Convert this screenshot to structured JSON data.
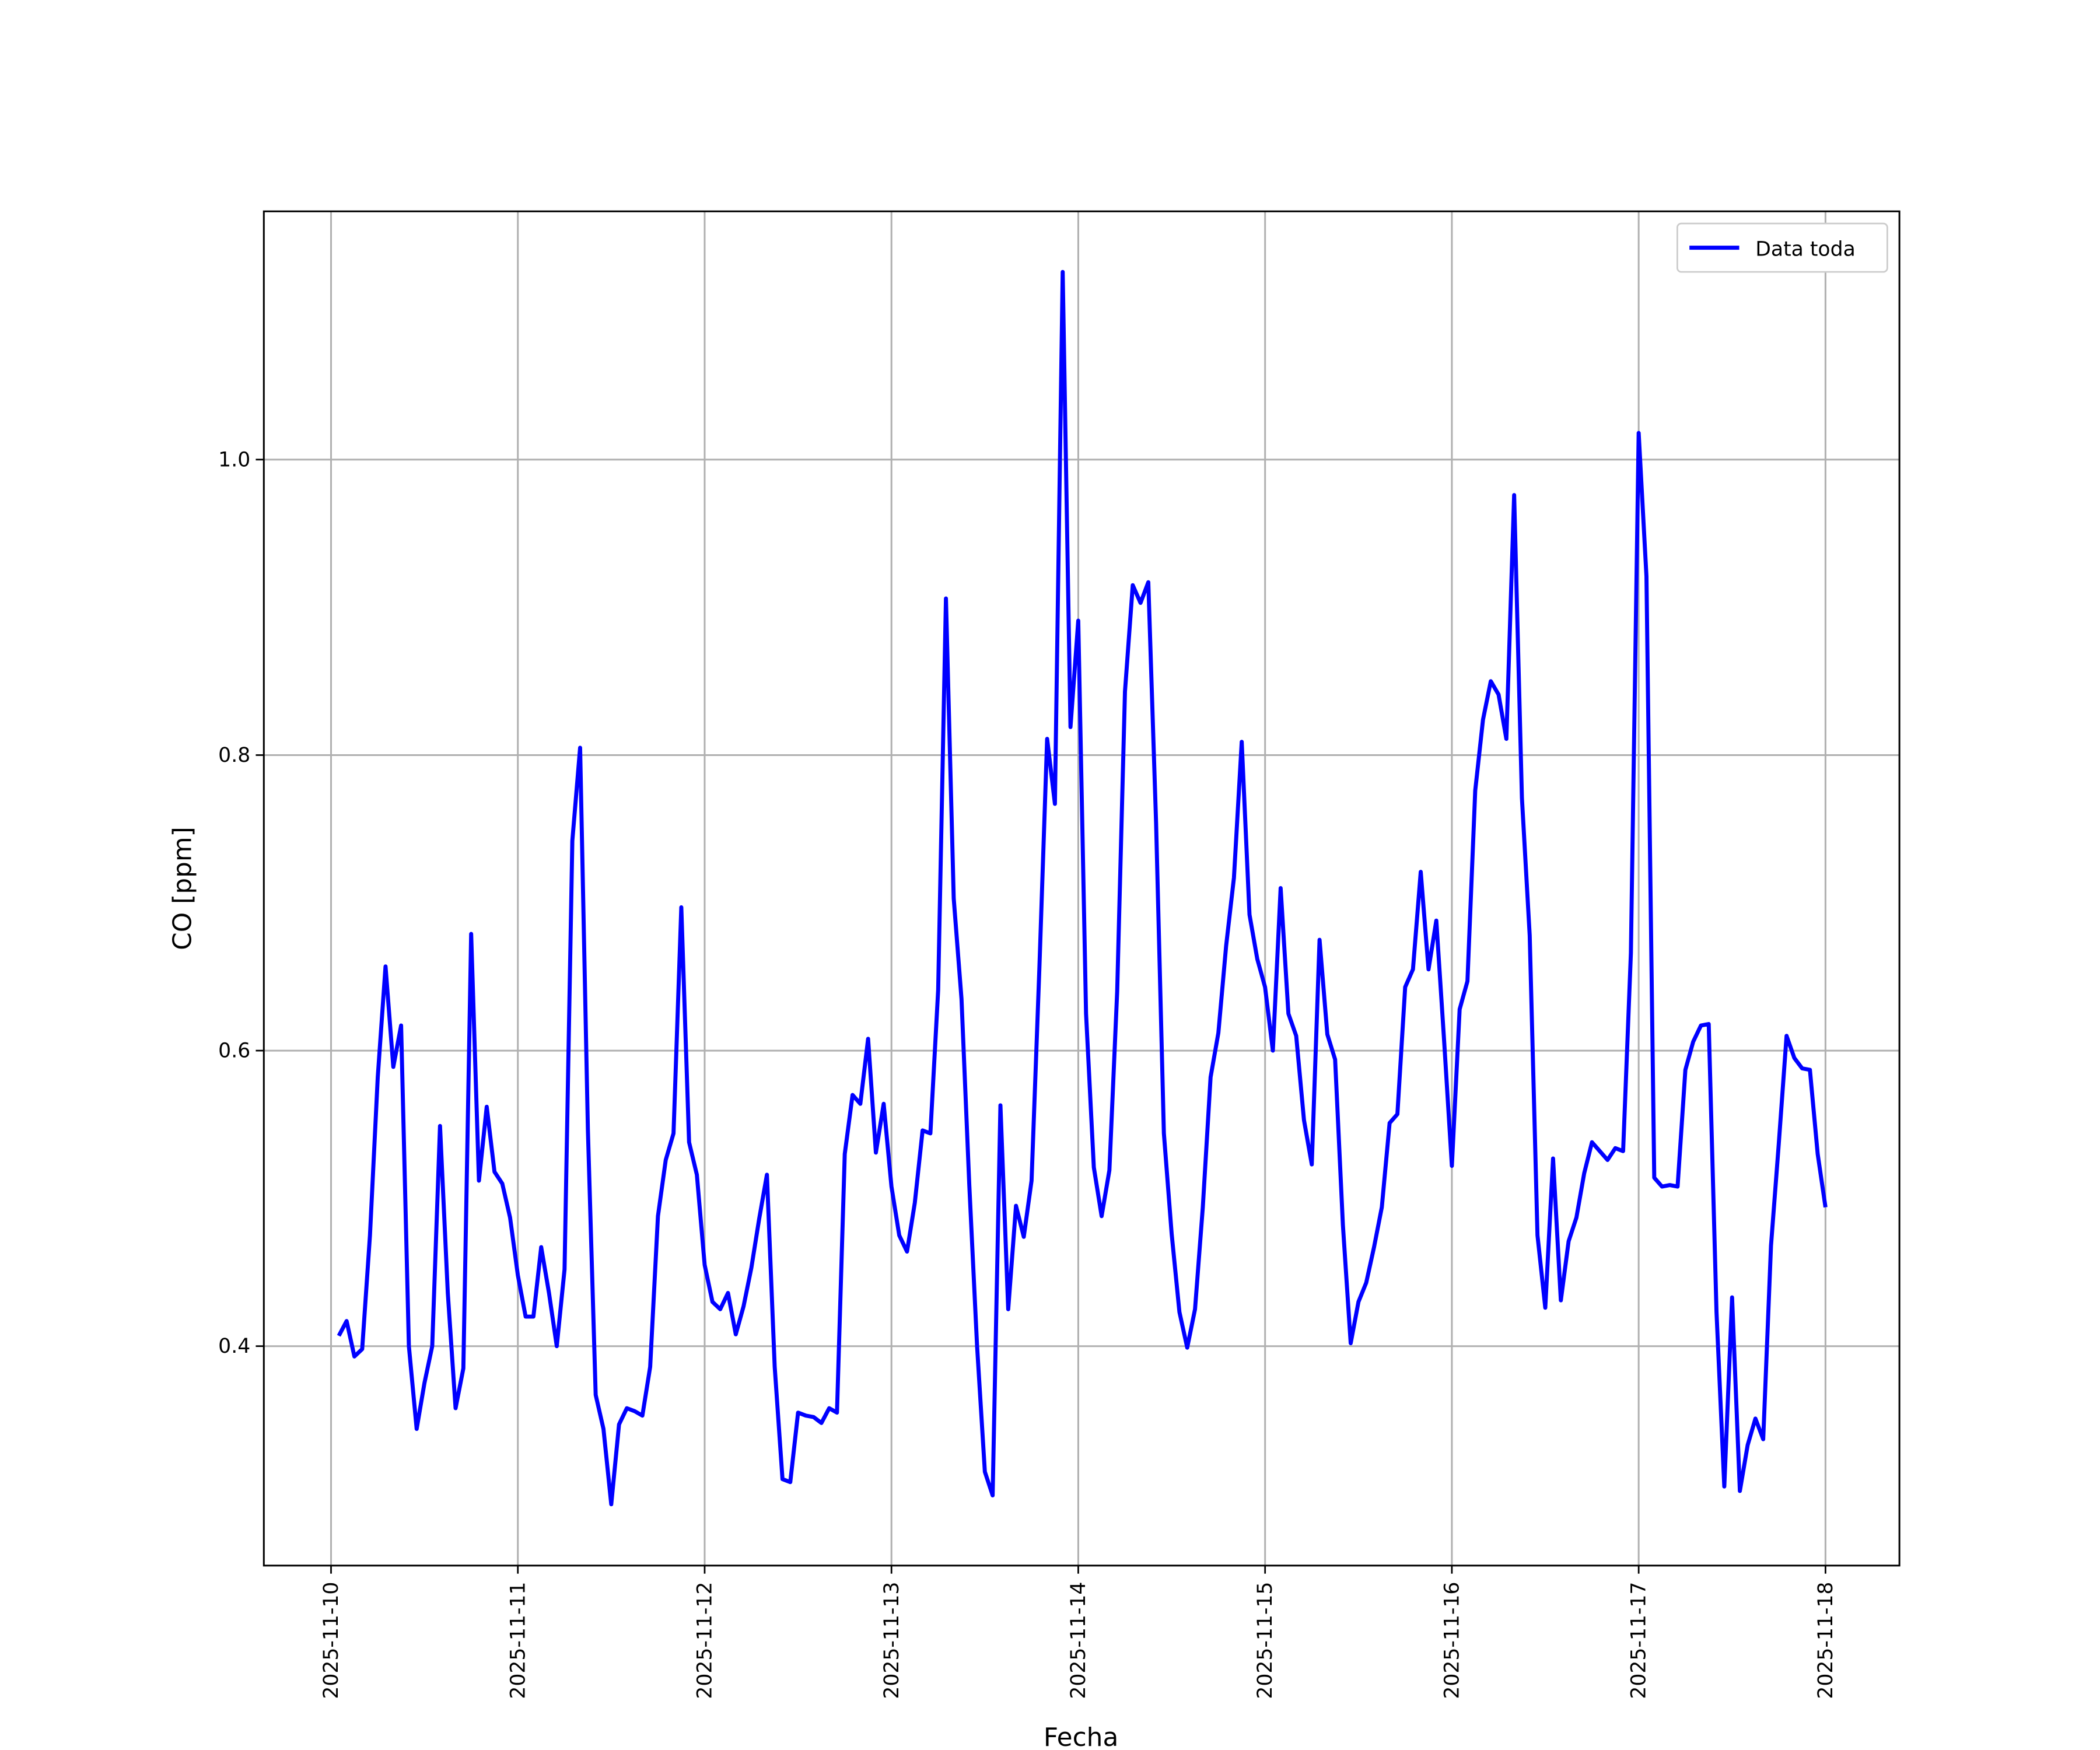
{
  "chart_data": {
    "type": "line",
    "xlabel": "Fecha",
    "ylabel": "CO [ppm]",
    "x": [
      "2025-11-10 01:00",
      "2025-11-10 02:00",
      "2025-11-10 03:00",
      "2025-11-10 04:00",
      "2025-11-10 05:00",
      "2025-11-10 06:00",
      "2025-11-10 07:00",
      "2025-11-10 08:00",
      "2025-11-10 09:00",
      "2025-11-10 10:00",
      "2025-11-10 11:00",
      "2025-11-10 12:00",
      "2025-11-10 13:00",
      "2025-11-10 14:00",
      "2025-11-10 15:00",
      "2025-11-10 16:00",
      "2025-11-10 17:00",
      "2025-11-10 18:00",
      "2025-11-10 19:00",
      "2025-11-10 20:00",
      "2025-11-10 21:00",
      "2025-11-10 22:00",
      "2025-11-10 23:00",
      "2025-11-11 00:00",
      "2025-11-11 01:00",
      "2025-11-11 02:00",
      "2025-11-11 03:00",
      "2025-11-11 04:00",
      "2025-11-11 05:00",
      "2025-11-11 06:00",
      "2025-11-11 07:00",
      "2025-11-11 08:00",
      "2025-11-11 09:00",
      "2025-11-11 10:00",
      "2025-11-11 11:00",
      "2025-11-11 12:00",
      "2025-11-11 13:00",
      "2025-11-11 14:00",
      "2025-11-11 15:00",
      "2025-11-11 16:00",
      "2025-11-11 17:00",
      "2025-11-11 18:00",
      "2025-11-11 19:00",
      "2025-11-11 20:00",
      "2025-11-11 21:00",
      "2025-11-11 22:00",
      "2025-11-11 23:00",
      "2025-11-12 00:00",
      "2025-11-12 01:00",
      "2025-11-12 02:00",
      "2025-11-12 03:00",
      "2025-11-12 04:00",
      "2025-11-12 05:00",
      "2025-11-12 06:00",
      "2025-11-12 07:00",
      "2025-11-12 08:00",
      "2025-11-12 09:00",
      "2025-11-12 10:00",
      "2025-11-12 11:00",
      "2025-11-12 12:00",
      "2025-11-12 13:00",
      "2025-11-12 14:00",
      "2025-11-12 15:00",
      "2025-11-12 16:00",
      "2025-11-12 17:00",
      "2025-11-12 18:00",
      "2025-11-12 19:00",
      "2025-11-12 20:00",
      "2025-11-12 21:00",
      "2025-11-12 22:00",
      "2025-11-12 23:00",
      "2025-11-13 00:00",
      "2025-11-13 01:00",
      "2025-11-13 02:00",
      "2025-11-13 03:00",
      "2025-11-13 04:00",
      "2025-11-13 05:00",
      "2025-11-13 06:00",
      "2025-11-13 07:00",
      "2025-11-13 08:00",
      "2025-11-13 09:00",
      "2025-11-13 10:00",
      "2025-11-13 11:00",
      "2025-11-13 12:00",
      "2025-11-13 13:00",
      "2025-11-13 14:00",
      "2025-11-13 15:00",
      "2025-11-13 16:00",
      "2025-11-13 17:00",
      "2025-11-13 18:00",
      "2025-11-13 19:00",
      "2025-11-13 20:00",
      "2025-11-13 21:00",
      "2025-11-13 22:00",
      "2025-11-13 23:00",
      "2025-11-14 00:00",
      "2025-11-14 01:00",
      "2025-11-14 02:00",
      "2025-11-14 03:00",
      "2025-11-14 04:00",
      "2025-11-14 05:00",
      "2025-11-14 06:00",
      "2025-11-14 07:00",
      "2025-11-14 08:00",
      "2025-11-14 09:00",
      "2025-11-14 10:00",
      "2025-11-14 11:00",
      "2025-11-14 12:00",
      "2025-11-14 13:00",
      "2025-11-14 14:00",
      "2025-11-14 15:00",
      "2025-11-14 16:00",
      "2025-11-14 17:00",
      "2025-11-14 18:00",
      "2025-11-14 19:00",
      "2025-11-14 20:00",
      "2025-11-14 21:00",
      "2025-11-14 22:00",
      "2025-11-14 23:00",
      "2025-11-15 00:00",
      "2025-11-15 01:00",
      "2025-11-15 02:00",
      "2025-11-15 03:00",
      "2025-11-15 04:00",
      "2025-11-15 05:00",
      "2025-11-15 06:00",
      "2025-11-15 07:00",
      "2025-11-15 08:00",
      "2025-11-15 09:00",
      "2025-11-15 10:00",
      "2025-11-15 11:00",
      "2025-11-15 12:00",
      "2025-11-15 13:00",
      "2025-11-15 14:00",
      "2025-11-15 15:00",
      "2025-11-15 16:00",
      "2025-11-15 17:00",
      "2025-11-15 18:00",
      "2025-11-15 19:00",
      "2025-11-15 20:00",
      "2025-11-15 21:00",
      "2025-11-15 22:00",
      "2025-11-15 23:00",
      "2025-11-16 00:00",
      "2025-11-16 01:00",
      "2025-11-16 02:00",
      "2025-11-16 03:00",
      "2025-11-16 04:00",
      "2025-11-16 05:00",
      "2025-11-16 06:00",
      "2025-11-16 07:00",
      "2025-11-16 08:00",
      "2025-11-16 09:00",
      "2025-11-16 10:00",
      "2025-11-16 11:00",
      "2025-11-16 12:00",
      "2025-11-16 13:00",
      "2025-11-16 14:00",
      "2025-11-16 15:00",
      "2025-11-16 16:00",
      "2025-11-16 17:00",
      "2025-11-16 18:00",
      "2025-11-16 19:00",
      "2025-11-16 20:00",
      "2025-11-16 21:00",
      "2025-11-16 22:00",
      "2025-11-16 23:00",
      "2025-11-17 00:00",
      "2025-11-17 01:00",
      "2025-11-17 02:00",
      "2025-11-17 03:00",
      "2025-11-17 04:00",
      "2025-11-17 05:00",
      "2025-11-17 06:00",
      "2025-11-17 07:00",
      "2025-11-17 08:00",
      "2025-11-17 09:00",
      "2025-11-17 10:00",
      "2025-11-17 11:00",
      "2025-11-17 12:00",
      "2025-11-17 13:00",
      "2025-11-17 14:00",
      "2025-11-17 15:00",
      "2025-11-17 16:00",
      "2025-11-17 17:00",
      "2025-11-17 18:00",
      "2025-11-17 19:00",
      "2025-11-17 20:00",
      "2025-11-17 21:00",
      "2025-11-17 22:00",
      "2025-11-17 23:00",
      "2025-11-18 00:00"
    ],
    "series": [
      {
        "name": "Data toda",
        "color": "#0000ff",
        "values": [
          0.407,
          0.417,
          0.393,
          0.398,
          0.475,
          0.582,
          0.657,
          0.589,
          0.617,
          0.4,
          0.344,
          0.375,
          0.4,
          0.549,
          0.436,
          0.358,
          0.385,
          0.679,
          0.512,
          0.562,
          0.518,
          0.51,
          0.487,
          0.448,
          0.42,
          0.42,
          0.467,
          0.436,
          0.4,
          0.452,
          0.742,
          0.805,
          0.546,
          0.367,
          0.344,
          0.293,
          0.347,
          0.358,
          0.356,
          0.353,
          0.386,
          0.488,
          0.526,
          0.544,
          0.697,
          0.538,
          0.516,
          0.455,
          0.43,
          0.425,
          0.436,
          0.408,
          0.427,
          0.453,
          0.486,
          0.516,
          0.386,
          0.31,
          0.308,
          0.355,
          0.353,
          0.352,
          0.348,
          0.358,
          0.355,
          0.53,
          0.57,
          0.564,
          0.608,
          0.531,
          0.564,
          0.508,
          0.475,
          0.464,
          0.497,
          0.546,
          0.544,
          0.641,
          0.906,
          0.703,
          0.635,
          0.509,
          0.4,
          0.315,
          0.299,
          0.563,
          0.425,
          0.495,
          0.474,
          0.512,
          0.655,
          0.811,
          0.767,
          1.127,
          0.819,
          0.891,
          0.625,
          0.521,
          0.488,
          0.519,
          0.64,
          0.843,
          0.915,
          0.903,
          0.917,
          0.754,
          0.544,
          0.476,
          0.423,
          0.399,
          0.425,
          0.494,
          0.582,
          0.612,
          0.671,
          0.717,
          0.809,
          0.692,
          0.662,
          0.643,
          0.6,
          0.71,
          0.625,
          0.61,
          0.553,
          0.523,
          0.675,
          0.611,
          0.594,
          0.482,
          0.402,
          0.43,
          0.443,
          0.467,
          0.494,
          0.551,
          0.557,
          0.643,
          0.655,
          0.721,
          0.655,
          0.688,
          0.607,
          0.522,
          0.628,
          0.647,
          0.776,
          0.824,
          0.85,
          0.841,
          0.811,
          0.976,
          0.771,
          0.678,
          0.475,
          0.426,
          0.527,
          0.431,
          0.471,
          0.487,
          0.517,
          0.538,
          0.532,
          0.526,
          0.534,
          0.532,
          0.666,
          1.018,
          0.921,
          0.514,
          0.508,
          0.509,
          0.508,
          0.587,
          0.606,
          0.617,
          0.618,
          0.423,
          0.305,
          0.433,
          0.302,
          0.333,
          0.351,
          0.337,
          0.468,
          0.537,
          0.61,
          0.595,
          0.588,
          0.587,
          0.53,
          0.494
        ]
      }
    ],
    "xlim": [
      "2025-11-09 15:22",
      "2025-11-18 09:30"
    ],
    "xticks": [
      "2025-11-10",
      "2025-11-11",
      "2025-11-12",
      "2025-11-13",
      "2025-11-14",
      "2025-11-15",
      "2025-11-16",
      "2025-11-17",
      "2025-11-18"
    ],
    "ylim": [
      0.2515,
      1.168
    ],
    "yticks": [
      0.4,
      0.6,
      0.8,
      {
        "value": 1,
        "label": "1.0"
      }
    ],
    "grid": true,
    "legend": "upper right"
  }
}
